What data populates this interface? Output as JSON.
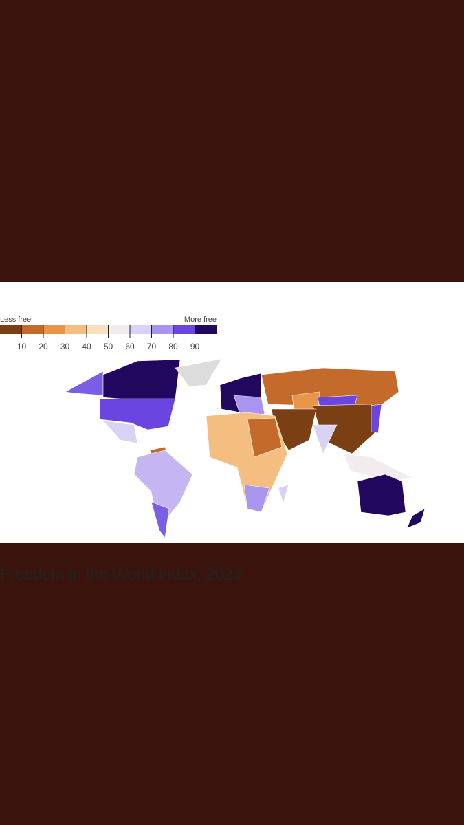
{
  "header": {
    "title": "Freedom in the World index, 2023"
  },
  "legend": {
    "low_label": "Less free",
    "high_label": "More free",
    "ticks": [
      10,
      20,
      30,
      40,
      50,
      60,
      70,
      80,
      90
    ],
    "colors": [
      "#7a3f12",
      "#c46a2a",
      "#e8954a",
      "#f3be7f",
      "#f9e0c0",
      "#f3ecef",
      "#d9d2f5",
      "#a995ef",
      "#6a45e0",
      "#22075e"
    ]
  }
}
